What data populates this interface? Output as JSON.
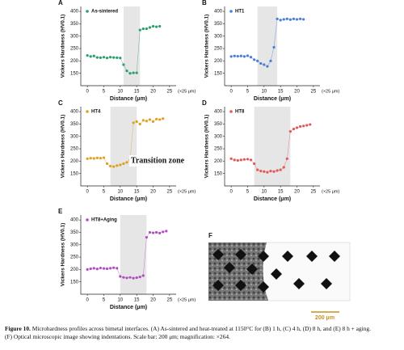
{
  "chart_data": [
    {
      "type": "line",
      "label": "A",
      "ylabel": "Vickers Hardness (HV0.1)",
      "xlabel": "Distance (μm)",
      "xunit": "(×25 μm)",
      "xlim": [
        -2,
        27
      ],
      "ylim": [
        100,
        420
      ],
      "xticks": [
        0,
        5,
        10,
        15,
        20,
        25
      ],
      "yticks": [
        150,
        200,
        250,
        300,
        350,
        400
      ],
      "shaded_range": [
        11,
        16
      ],
      "series": [
        {
          "name": "As-sintered",
          "color": "#2e9e6e",
          "x": [
            0,
            1,
            2,
            3,
            4,
            5,
            6,
            7,
            8,
            9,
            10,
            11,
            12,
            13,
            14,
            15,
            16,
            17,
            18,
            19,
            20,
            21,
            22
          ],
          "values": [
            222,
            218,
            220,
            214,
            213,
            215,
            212,
            215,
            214,
            213,
            212,
            185,
            160,
            150,
            152,
            152,
            325,
            330,
            330,
            335,
            340,
            338,
            340
          ]
        }
      ]
    },
    {
      "type": "line",
      "label": "B",
      "ylabel": "Vickers Hardness (HV0.1)",
      "xlabel": "Distance (μm)",
      "xunit": "(×25 μm)",
      "xlim": [
        -2,
        27
      ],
      "ylim": [
        100,
        420
      ],
      "xticks": [
        0,
        5,
        10,
        15,
        20,
        25
      ],
      "yticks": [
        150,
        200,
        250,
        300,
        350,
        400
      ],
      "shaded_range": [
        8,
        14
      ],
      "series": [
        {
          "name": "HT1",
          "color": "#4a7fd6",
          "x": [
            0,
            1,
            2,
            3,
            4,
            5,
            6,
            7,
            8,
            9,
            10,
            11,
            12,
            13,
            14,
            15,
            16,
            17,
            18,
            19,
            20,
            21,
            22
          ],
          "values": [
            218,
            220,
            219,
            220,
            218,
            221,
            215,
            205,
            200,
            190,
            185,
            178,
            200,
            255,
            370,
            365,
            368,
            370,
            367,
            370,
            368,
            370,
            368
          ]
        }
      ]
    },
    {
      "type": "line",
      "label": "C",
      "ylabel": "Vickers Hardness (HV0.1)",
      "xlabel": "Distance (μm)",
      "xunit": "(×25 μm)",
      "xlim": [
        -2,
        27
      ],
      "ylim": [
        100,
        420
      ],
      "xticks": [
        0,
        5,
        10,
        15,
        20,
        25
      ],
      "yticks": [
        150,
        200,
        250,
        300,
        350,
        400
      ],
      "shaded_range": [
        7,
        15
      ],
      "series": [
        {
          "name": "HT4",
          "color": "#e0a020",
          "x": [
            0,
            1,
            2,
            3,
            4,
            5,
            6,
            7,
            8,
            9,
            10,
            11,
            12,
            13,
            14,
            15,
            16,
            17,
            18,
            19,
            20,
            21,
            22,
            23
          ],
          "values": [
            210,
            212,
            211,
            213,
            212,
            214,
            190,
            180,
            178,
            182,
            185,
            190,
            195,
            205,
            355,
            360,
            350,
            365,
            362,
            368,
            360,
            370,
            368,
            372
          ]
        }
      ]
    },
    {
      "type": "line",
      "label": "D",
      "ylabel": "Vickers Hardness (HV0.1)",
      "xlabel": "Distance (μm)",
      "xunit": "(×25 μm)",
      "xlim": [
        -2,
        27
      ],
      "ylim": [
        100,
        420
      ],
      "xticks": [
        0,
        5,
        10,
        15,
        20,
        25
      ],
      "yticks": [
        150,
        200,
        250,
        300,
        350,
        400
      ],
      "shaded_range": [
        7,
        18
      ],
      "series": [
        {
          "name": "HT8",
          "color": "#e05a5a",
          "x": [
            0,
            1,
            2,
            3,
            4,
            5,
            6,
            7,
            8,
            9,
            10,
            11,
            12,
            13,
            14,
            15,
            16,
            17,
            18,
            19,
            20,
            21,
            22,
            23,
            24
          ],
          "values": [
            210,
            205,
            203,
            205,
            207,
            208,
            205,
            190,
            165,
            160,
            158,
            155,
            160,
            158,
            162,
            165,
            175,
            210,
            320,
            330,
            335,
            340,
            342,
            345,
            348
          ]
        }
      ]
    },
    {
      "type": "line",
      "label": "E",
      "ylabel": "Vickers Hardness (HV0.1)",
      "xlabel": "Distance (μm)",
      "xunit": "(×25 μm)",
      "xlim": [
        -2,
        27
      ],
      "ylim": [
        100,
        420
      ],
      "xticks": [
        0,
        5,
        10,
        15,
        20,
        25
      ],
      "yticks": [
        150,
        200,
        250,
        300,
        350,
        400
      ],
      "shaded_range": [
        10,
        18
      ],
      "series": [
        {
          "name": "HT8+Aging",
          "color": "#b04fc0",
          "x": [
            0,
            1,
            2,
            3,
            4,
            5,
            6,
            7,
            8,
            9,
            10,
            11,
            12,
            13,
            14,
            15,
            16,
            17,
            18,
            19,
            20,
            21,
            22,
            23,
            24
          ],
          "values": [
            200,
            203,
            205,
            202,
            206,
            204,
            203,
            205,
            207,
            205,
            172,
            168,
            166,
            168,
            165,
            167,
            170,
            175,
            330,
            350,
            348,
            350,
            347,
            352,
            355
          ]
        }
      ]
    }
  ],
  "annotation": "Transition zone",
  "image_panel": {
    "label": "F",
    "scale_bar": "200 μm"
  },
  "caption": {
    "figure": "Figure 10.",
    "lines": [
      "Microhardness profiles across bimetal interfaces. (A) As-sintered and heat-treated at 1150°C for (B) 1 h, (C) 4 h, (D) 8 h, and (E) 8 h + aging.",
      "(F) Optical microscopic image showing indentations. Scale bar: 200 μm; magnification: ×264."
    ]
  }
}
